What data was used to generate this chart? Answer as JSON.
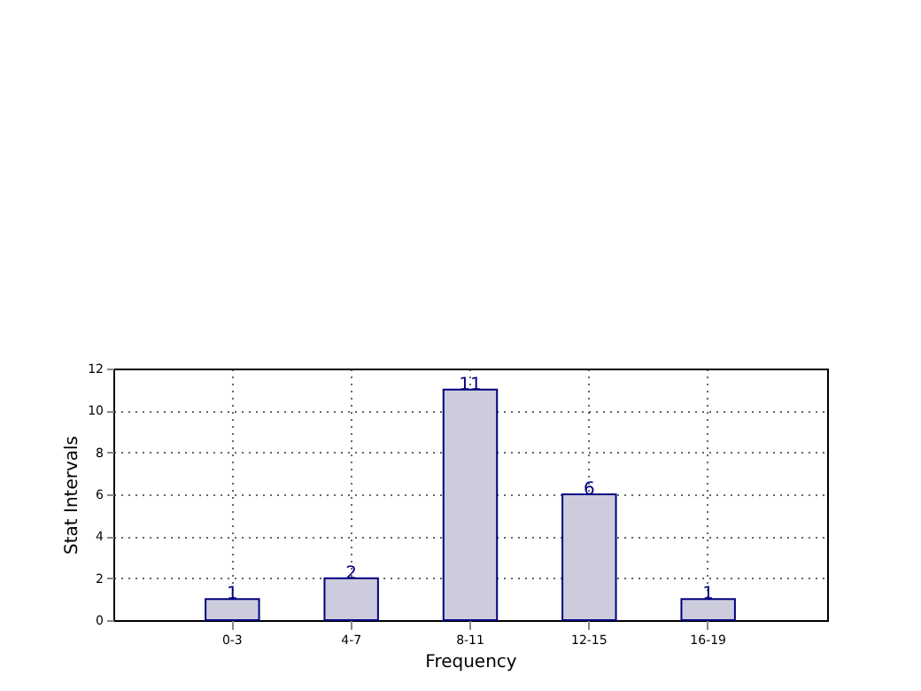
{
  "chart_data": {
    "type": "bar",
    "xlabel": "Frequency",
    "ylabel": "Stat Intervals",
    "categories": [
      "0-3",
      "4-7",
      "8-11",
      "12-15",
      "16-19"
    ],
    "values": [
      1,
      2,
      11,
      6,
      1
    ],
    "color": "#ccccdd",
    "ylim": [
      0,
      12
    ],
    "yticks": [
      0,
      2,
      4,
      6,
      8,
      10,
      12
    ],
    "grid": true,
    "data_labels": true
  }
}
